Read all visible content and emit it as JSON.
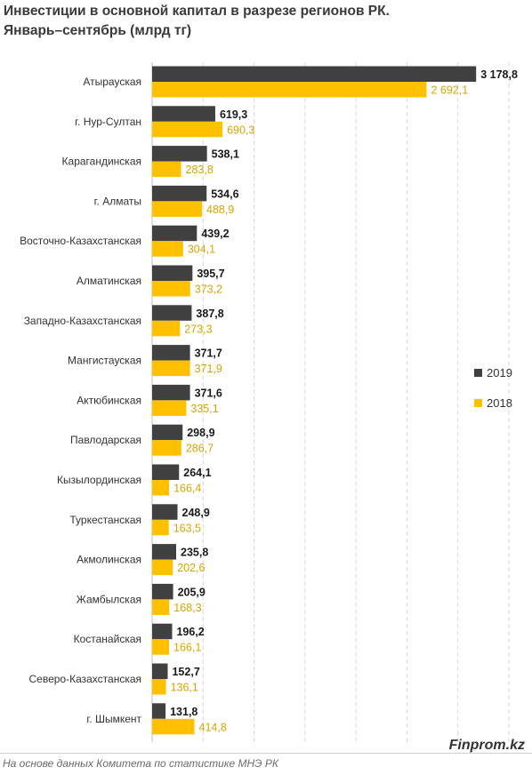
{
  "title_lines": [
    "Инвестиции в основной капитал в разрезе регионов РК.",
    "Январь–сентябрь (млрд тг)"
  ],
  "watermark": "Finprom.kz",
  "source": "На основе данных  Комитета по статистике МНЭ РК",
  "colors": {
    "2019": "#404040",
    "2018": "#ffc000",
    "label_2019": "#1a1a1a",
    "label_2018": "#d9a400",
    "grid": "#d9d9d9"
  },
  "chart_data": {
    "type": "bar",
    "orientation": "horizontal",
    "categories": [
      "Атырауская",
      "г. Нур-Султан",
      "Карагандинская",
      "г. Алматы",
      "Восточно-Казахстанская",
      "Алматинская",
      "Западно-Казахстанская",
      "Мангистауская",
      "Актюбинская",
      "Павлодарская",
      "Кызылординская",
      "Туркестанская",
      "Акмолинская",
      "Жамбылская",
      "Костанайская",
      "Северо-Казахстанская",
      "г. Шымкент"
    ],
    "series": [
      {
        "name": "2019",
        "values": [
          3178.8,
          619.3,
          538.1,
          534.6,
          439.2,
          395.7,
          387.8,
          371.7,
          371.6,
          298.9,
          264.1,
          248.9,
          235.8,
          205.9,
          196.2,
          152.7,
          131.8
        ],
        "labels": [
          "3 178,8",
          "619,3",
          "538,1",
          "534,6",
          "439,2",
          "395,7",
          "387,8",
          "371,7",
          "371,6",
          "298,9",
          "264,1",
          "248,9",
          "235,8",
          "205,9",
          "196,2",
          "152,7",
          "131,8"
        ]
      },
      {
        "name": "2018",
        "values": [
          2692.1,
          690.3,
          283.8,
          488.9,
          304.1,
          373.2,
          273.3,
          371.9,
          335.1,
          286.7,
          166.4,
          163.5,
          202.6,
          168.3,
          166.1,
          136.1,
          414.8
        ],
        "labels": [
          "2 692,1",
          "690,3",
          "283,8",
          "488,9",
          "304,1",
          "373,2",
          "273,3",
          "371,9",
          "335,1",
          "286,7",
          "166,4",
          "163,5",
          "202,6",
          "168,3",
          "166,1",
          "136,1",
          "414,8"
        ]
      }
    ],
    "xlim": [
      0,
      3500
    ],
    "grid": true,
    "legend_position": "right"
  }
}
